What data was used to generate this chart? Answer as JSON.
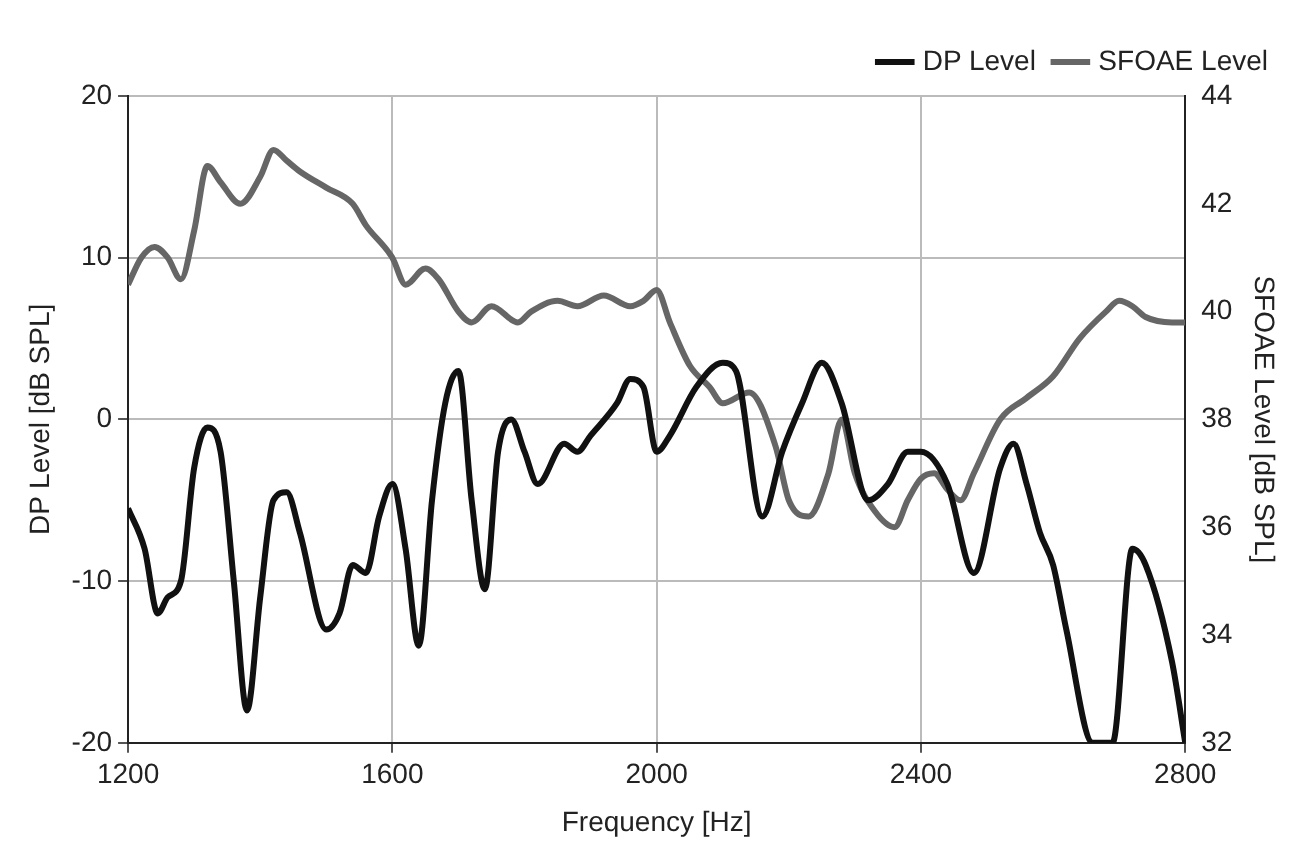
{
  "chart_data": {
    "type": "line",
    "xlabel": "Frequency [Hz]",
    "ylabel": "DP Level [dB SPL]",
    "y2label": "SFOAE Level [dB SPL]",
    "xlim": [
      1200,
      2800
    ],
    "xticks": [
      1200,
      1600,
      2000,
      2400,
      2800
    ],
    "ylim": [
      -20,
      20
    ],
    "yticks": [
      -20,
      -10,
      0,
      10,
      20
    ],
    "y2lim": [
      32,
      44
    ],
    "y2ticks": [
      32,
      34,
      36,
      38,
      40,
      42,
      44
    ],
    "grid": true,
    "legend": "top right",
    "marker": "none",
    "line_style": "solid",
    "series": [
      {
        "name": "DP Level",
        "color": "#111111",
        "x": [
          1200,
          1225,
          1245,
          1260,
          1280,
          1300,
          1320,
          1340,
          1360,
          1380,
          1400,
          1420,
          1440,
          1460,
          1500,
          1520,
          1540,
          1560,
          1580,
          1600,
          1620,
          1640,
          1660,
          1680,
          1700,
          1720,
          1740,
          1760,
          1780,
          1800,
          1820,
          1860,
          1880,
          1900,
          1940,
          1960,
          1980,
          2000,
          2020,
          2060,
          2100,
          2120,
          2160,
          2190,
          2220,
          2250,
          2280,
          2320,
          2350,
          2380,
          2400,
          2440,
          2480,
          2520,
          2540,
          2560,
          2580,
          2600,
          2620,
          2660,
          2690,
          2720,
          2740,
          2780,
          2800
        ],
        "values": [
          -5.5,
          -8,
          -12,
          -11,
          -10,
          -3,
          -0.5,
          -2,
          -10,
          -18,
          -11,
          -5,
          -4.5,
          -7,
          -13,
          -12,
          -9,
          -9.5,
          -6,
          -4,
          -8,
          -14,
          -5,
          1,
          3,
          -5,
          -10.5,
          -2,
          0,
          -2,
          -4,
          -1.5,
          -2,
          -1,
          1,
          2.5,
          2,
          -2,
          -1,
          2,
          3.5,
          3,
          -6,
          -2,
          1,
          3.5,
          1,
          -5,
          -4,
          -2,
          -2,
          -4,
          -9.5,
          -3,
          -1.5,
          -4,
          -7,
          -9,
          -13,
          -20,
          -20,
          -8,
          -9,
          -15,
          -20
        ]
      },
      {
        "name": "SFOAE Level",
        "color": "#666666",
        "axis": "y2",
        "x": [
          1200,
          1220,
          1240,
          1260,
          1280,
          1300,
          1320,
          1340,
          1370,
          1400,
          1420,
          1440,
          1460,
          1500,
          1540,
          1560,
          1600,
          1620,
          1650,
          1670,
          1700,
          1720,
          1750,
          1790,
          1810,
          1850,
          1880,
          1920,
          1960,
          1980,
          2000,
          2020,
          2050,
          2080,
          2100,
          2140,
          2180,
          2200,
          2230,
          2260,
          2280,
          2300,
          2330,
          2360,
          2380,
          2400,
          2420,
          2440,
          2460,
          2480,
          2520,
          2560,
          2600,
          2640,
          2680,
          2700,
          2720,
          2740,
          2780,
          2800
        ],
        "values": [
          40.5,
          41,
          41.2,
          41,
          40.6,
          41.5,
          42.7,
          42.4,
          42,
          42.5,
          43,
          42.8,
          42.6,
          42.3,
          42,
          41.6,
          41,
          40.5,
          40.8,
          40.6,
          40,
          39.8,
          40.1,
          39.8,
          40,
          40.2,
          40.1,
          40.3,
          40.1,
          40.2,
          40.4,
          39.8,
          39,
          38.6,
          38.3,
          38.5,
          37.5,
          36.5,
          36.2,
          37,
          38,
          37,
          36.3,
          36,
          36.5,
          36.9,
          37,
          36.7,
          36.5,
          37,
          38,
          38.4,
          38.8,
          39.5,
          40,
          40.2,
          40.1,
          39.9,
          39.8,
          39.8
        ]
      }
    ]
  }
}
